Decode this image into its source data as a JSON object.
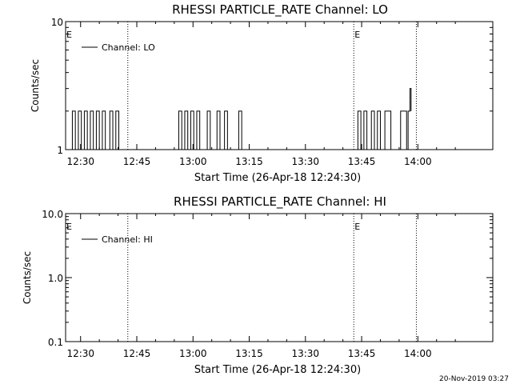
{
  "chart_data": [
    {
      "type": "line",
      "title": "RHESSI PARTICLE_RATE Channel: LO",
      "xlabel": "Start Time (26-Apr-18 12:24:30)",
      "ylabel": "Counts/sec",
      "yscale": "log",
      "ylim": [
        1,
        10
      ],
      "xlim_minutes": [
        -4.0,
        110.0
      ],
      "xtick_labels": [
        "12:30",
        "12:45",
        "13:00",
        "13:15",
        "13:30",
        "13:45",
        "14:00"
      ],
      "xtick_minutes": [
        0,
        15,
        30,
        45,
        60,
        75,
        90
      ],
      "ytick_labels": [
        "1",
        "10"
      ],
      "ytick_values": [
        1,
        10
      ],
      "vlines_minutes": [
        12.6,
        72.9,
        89.6
      ],
      "event_marker": "E",
      "event_minutes": [
        -4.0,
        72.9
      ],
      "legend": {
        "label": "Channel: LO",
        "placement": "top-left"
      },
      "series": [
        {
          "name": "Channel: LO",
          "x": [
            -4.0,
            -2.6,
            -2.2,
            -1.8,
            -1.4,
            -1.0,
            -0.6,
            -0.2,
            0.2,
            0.6,
            1.0,
            1.4,
            1.8,
            2.2,
            2.6,
            3.0,
            3.4,
            3.8,
            4.2,
            4.6,
            5.0,
            5.4,
            5.8,
            6.2,
            6.6,
            7.0,
            7.4,
            7.8,
            8.2,
            8.6,
            9.0,
            9.4,
            9.8,
            10.2,
            25.8,
            26.2,
            26.6,
            27.0,
            27.4,
            27.8,
            28.2,
            28.6,
            29.0,
            29.4,
            29.8,
            30.2,
            30.6,
            31.0,
            31.4,
            31.8,
            32.2,
            33.0,
            33.4,
            33.8,
            34.2,
            34.6,
            35.0,
            35.4,
            36.0,
            36.4,
            36.8,
            37.2,
            37.6,
            38.0,
            38.4,
            38.8,
            39.2,
            39.6,
            40.0,
            40.4,
            41.4,
            41.8,
            42.2,
            42.6,
            43.0,
            43.4,
            73.6,
            74.0,
            74.4,
            74.8,
            75.2,
            75.6,
            76.0,
            76.4,
            76.8,
            77.2,
            77.6,
            78.0,
            78.4,
            78.8,
            79.2,
            79.6,
            80.0,
            80.4,
            80.8,
            81.2,
            81.6,
            82.0,
            82.4,
            82.8,
            83.2,
            85.4,
            85.8,
            86.2,
            86.6,
            87.0,
            87.4,
            87.6,
            87.9,
            88.2
          ],
          "y": [
            1,
            1,
            2,
            2,
            1,
            1,
            2,
            2,
            1,
            1,
            2,
            2,
            1,
            1,
            2,
            2,
            1,
            1,
            2,
            2,
            1,
            1,
            2,
            2,
            1,
            1,
            1,
            2,
            2,
            1,
            1,
            2,
            2,
            1,
            1,
            2,
            2,
            1,
            1,
            2,
            2,
            1,
            1,
            2,
            2,
            1,
            1,
            2,
            2,
            1,
            1,
            1,
            1,
            2,
            2,
            1,
            1,
            1,
            1,
            2,
            2,
            1,
            1,
            1,
            2,
            2,
            1,
            1,
            1,
            1,
            1,
            1,
            2,
            2,
            1,
            1,
            1,
            2,
            2,
            1,
            1,
            2,
            2,
            1,
            1,
            1,
            2,
            2,
            1,
            1,
            2,
            2,
            1,
            1,
            1,
            2,
            2,
            2,
            2,
            1,
            1,
            2,
            2,
            2,
            2,
            1,
            2,
            2,
            3,
            2
          ]
        }
      ]
    },
    {
      "type": "line",
      "title": "RHESSI PARTICLE_RATE Channel: HI",
      "xlabel": "Start Time (26-Apr-18 12:24:30)",
      "ylabel": "Counts/sec",
      "yscale": "log",
      "ylim": [
        0.1,
        10.0
      ],
      "xlim_minutes": [
        -4.0,
        110.0
      ],
      "xtick_labels": [
        "12:30",
        "12:45",
        "13:00",
        "13:15",
        "13:30",
        "13:45",
        "14:00"
      ],
      "xtick_minutes": [
        0,
        15,
        30,
        45,
        60,
        75,
        90
      ],
      "ytick_labels": [
        "0.1",
        "1.0",
        "10.0"
      ],
      "ytick_values": [
        0.1,
        1.0,
        10.0
      ],
      "vlines_minutes": [
        12.6,
        72.9,
        89.6
      ],
      "event_marker": "E",
      "event_minutes": [
        -4.0,
        72.9
      ],
      "legend": {
        "label": "Channel: HI",
        "placement": "top-left"
      },
      "series": [
        {
          "name": "Channel: HI",
          "x": [],
          "y": []
        }
      ]
    }
  ],
  "footer": {
    "timestamp": "20-Nov-2019 03:27"
  }
}
